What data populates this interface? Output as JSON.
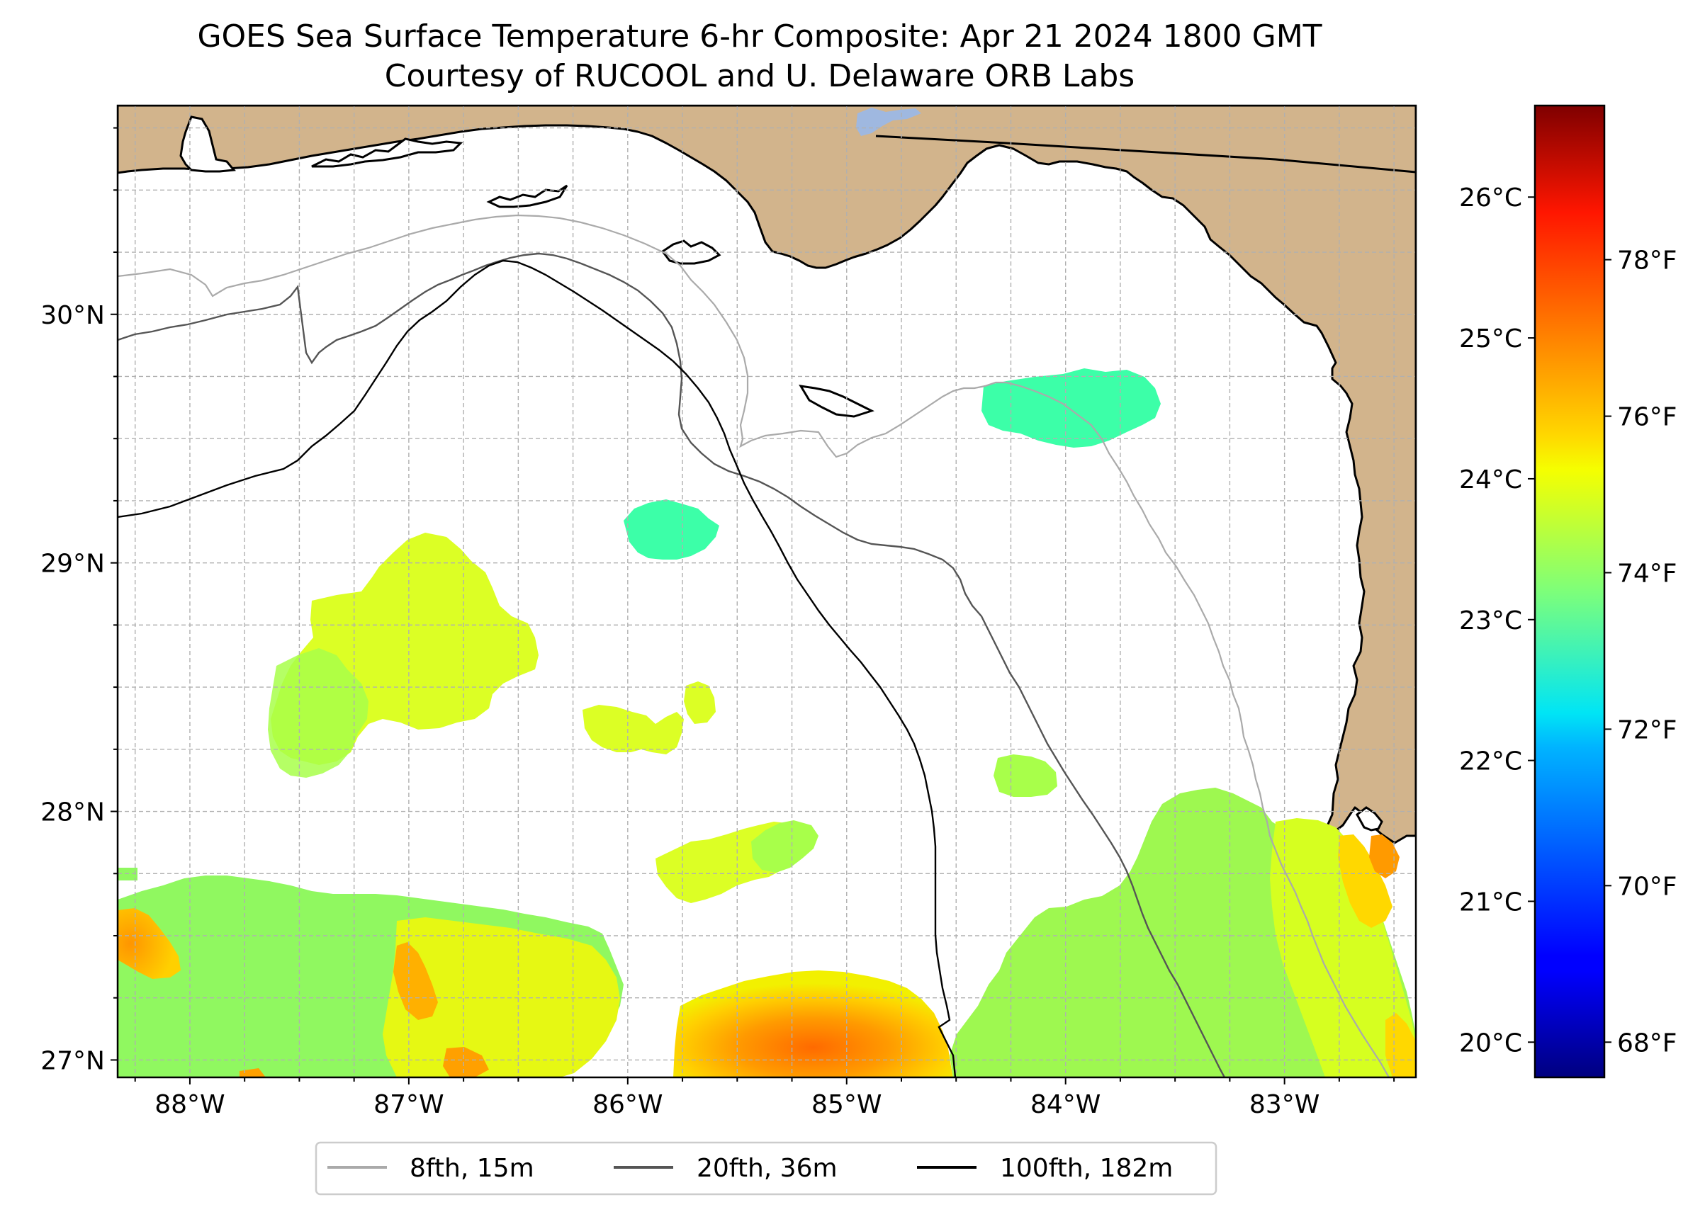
{
  "title": {
    "line1": "GOES Sea Surface Temperature 6-hr Composite: Apr 21 2024 1800 GMT",
    "line2": "Courtesy of RUCOOL and U. Delaware ORB Labs"
  },
  "map": {
    "lon_range": [
      -88.33,
      -82.4
    ],
    "lat_range": [
      26.93,
      30.84
    ],
    "lon_ticks": [
      {
        "value": -88,
        "label": "88°W"
      },
      {
        "value": -87,
        "label": "87°W"
      },
      {
        "value": -86,
        "label": "86°W"
      },
      {
        "value": -85,
        "label": "85°W"
      },
      {
        "value": -84,
        "label": "84°W"
      },
      {
        "value": -83,
        "label": "83°W"
      }
    ],
    "lat_ticks": [
      {
        "value": 30,
        "label": "30°N"
      },
      {
        "value": 29,
        "label": "29°N"
      },
      {
        "value": 28,
        "label": "28°N"
      },
      {
        "value": 27,
        "label": "27°N"
      }
    ],
    "grid": true,
    "land_color": "#d2b48c",
    "ocean_color": "#ffffff",
    "lake_color": "#9fb8e0"
  },
  "colorbar": {
    "colormap": "jet",
    "range_c": [
      19.75,
      26.65
    ],
    "celsius_ticks": [
      {
        "value": 20,
        "label": "20°C"
      },
      {
        "value": 21,
        "label": "21°C"
      },
      {
        "value": 22,
        "label": "22°C"
      },
      {
        "value": 23,
        "label": "23°C"
      },
      {
        "value": 24,
        "label": "24°C"
      },
      {
        "value": 25,
        "label": "25°C"
      },
      {
        "value": 26,
        "label": "26°C"
      }
    ],
    "fahrenheit_ticks": [
      {
        "value": 68,
        "label": "68°F"
      },
      {
        "value": 70,
        "label": "70°F"
      },
      {
        "value": 72,
        "label": "72°F"
      },
      {
        "value": 74,
        "label": "74°F"
      },
      {
        "value": 76,
        "label": "76°F"
      },
      {
        "value": 78,
        "label": "78°F"
      }
    ]
  },
  "legend": {
    "items": [
      {
        "label": "8fth, 15m",
        "color": "#aaaaaa"
      },
      {
        "label": "20fth, 36m",
        "color": "#555555"
      },
      {
        "label": "100fth, 182m",
        "color": "#000000"
      }
    ]
  }
}
